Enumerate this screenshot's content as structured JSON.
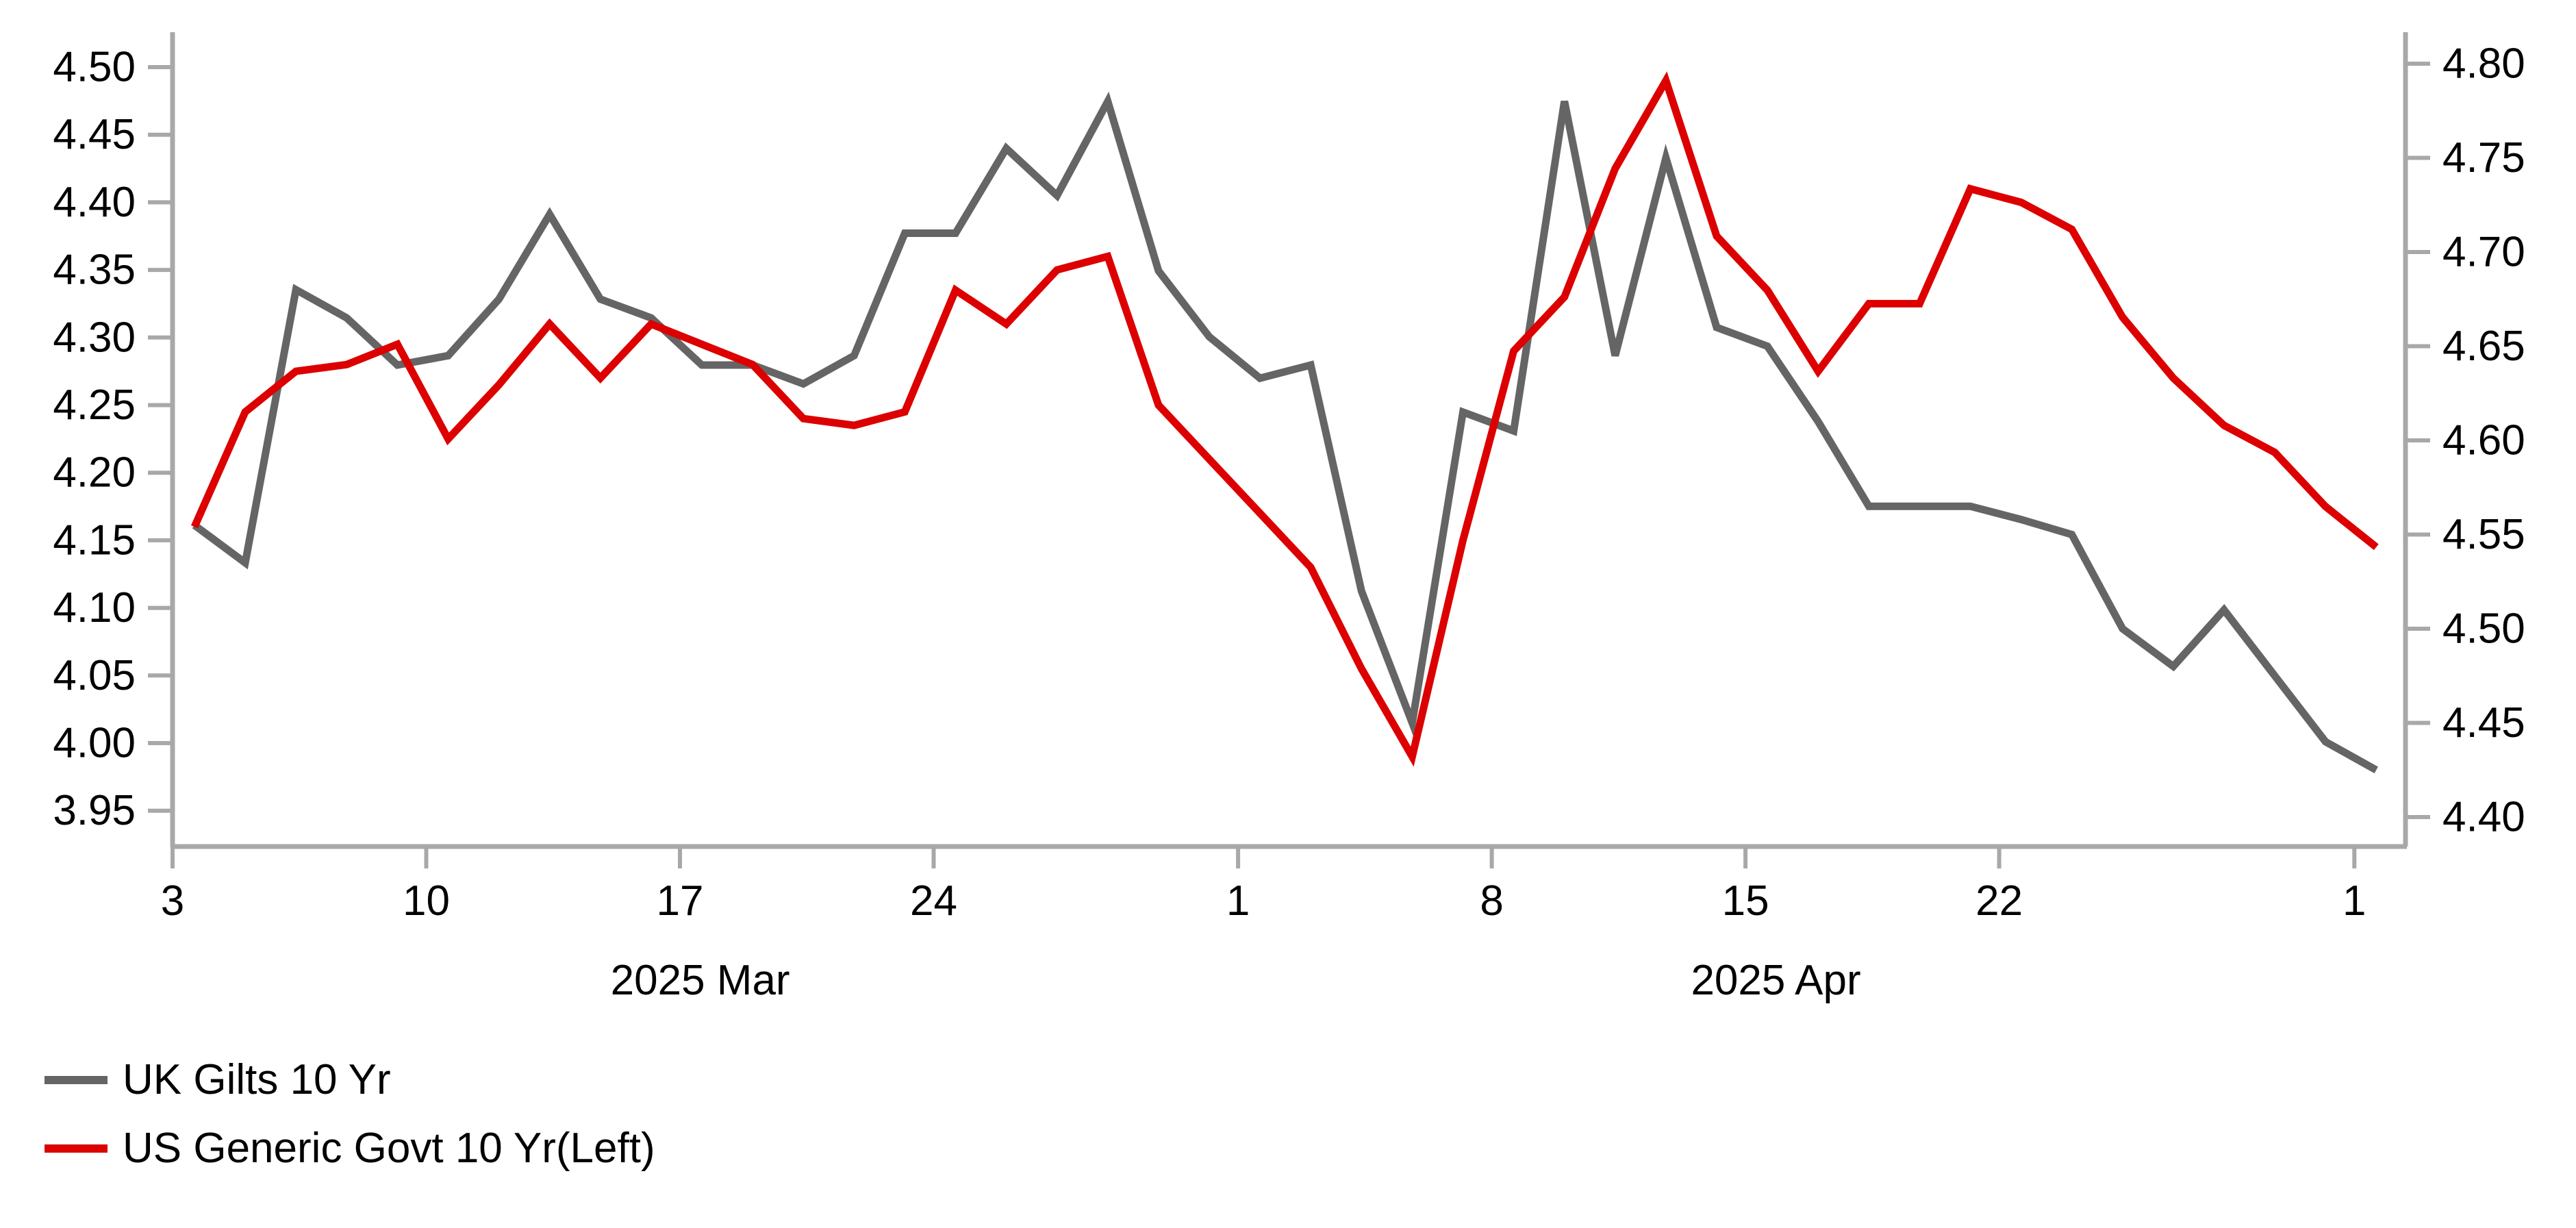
{
  "chart_data": {
    "type": "line",
    "title": "",
    "x_dates": [
      "Mar 3",
      "Mar 4",
      "Mar 5",
      "Mar 6",
      "Mar 7",
      "Mar 10",
      "Mar 11",
      "Mar 12",
      "Mar 13",
      "Mar 14",
      "Mar 17",
      "Mar 18",
      "Mar 19",
      "Mar 20",
      "Mar 21",
      "Mar 24",
      "Mar 25",
      "Mar 26",
      "Mar 27",
      "Mar 28",
      "Mar 31",
      "Apr 1",
      "Apr 2",
      "Apr 3",
      "Apr 4",
      "Apr 7",
      "Apr 8",
      "Apr 9",
      "Apr 10",
      "Apr 11",
      "Apr 14",
      "Apr 15",
      "Apr 16",
      "Apr 17",
      "Apr 18",
      "Apr 21",
      "Apr 22",
      "Apr 23",
      "Apr 24",
      "Apr 25",
      "Apr 28",
      "Apr 29",
      "Apr 30",
      "May 1"
    ],
    "series": [
      {
        "name": "UK Gilts 10 Yr",
        "axis": "right",
        "color": "#656565",
        "values": [
          4.555,
          4.535,
          4.68,
          4.665,
          4.64,
          4.645,
          4.675,
          4.72,
          4.675,
          4.665,
          4.64,
          4.64,
          4.63,
          4.645,
          4.71,
          4.71,
          4.755,
          4.73,
          4.78,
          4.69,
          4.655,
          4.633,
          4.64,
          4.52,
          4.45,
          4.615,
          4.605,
          4.78,
          4.645,
          4.75,
          4.66,
          4.65,
          4.61,
          4.565,
          4.565,
          4.565,
          4.558,
          4.55,
          4.5,
          4.48,
          4.51,
          4.475,
          4.44,
          4.425
        ]
      },
      {
        "name": "US Generic Govt 10 Yr(Left)",
        "axis": "left",
        "color": "#dc0000",
        "values": [
          4.16,
          4.245,
          4.275,
          4.28,
          4.295,
          4.225,
          4.265,
          4.31,
          4.27,
          4.31,
          4.295,
          4.28,
          4.24,
          4.235,
          4.245,
          4.335,
          4.31,
          4.35,
          4.36,
          4.25,
          4.21,
          4.17,
          4.13,
          4.055,
          3.99,
          4.15,
          4.29,
          4.33,
          4.425,
          4.49,
          4.375,
          4.335,
          4.275,
          4.325,
          4.325,
          4.41,
          4.4,
          4.38,
          4.315,
          4.27,
          4.235,
          4.215,
          4.175,
          4.145
        ]
      }
    ],
    "left_axis": {
      "min": 3.95,
      "max": 4.5,
      "tick_step": 0.05,
      "tick_labels": [
        "4.50",
        "4.45",
        "4.40",
        "4.35",
        "4.30",
        "4.25",
        "4.20",
        "4.15",
        "4.10",
        "4.05",
        "4.00",
        "3.95"
      ]
    },
    "right_axis": {
      "min": 4.4,
      "max": 4.8,
      "tick_step": 0.05,
      "tick_labels": [
        "4.80",
        "4.75",
        "4.70",
        "4.65",
        "4.60",
        "4.55",
        "4.50",
        "4.45",
        "4.40"
      ]
    },
    "x_axis": {
      "tick_labels": [
        "3",
        "10",
        "17",
        "24",
        "1",
        "8",
        "15",
        "22",
        "1"
      ],
      "tick_day_indices": [
        0,
        5,
        10,
        15,
        21,
        26,
        31,
        36,
        43
      ],
      "month_labels": [
        {
          "text": "2025 Mar",
          "day_index": 10.4
        },
        {
          "text": "2025 Apr",
          "day_index": 31.6
        }
      ]
    },
    "ylim_left": [
      3.95,
      4.5
    ],
    "ylim_right": [
      4.4,
      4.8
    ],
    "grid": false,
    "legend_position": "bottom-left",
    "legend": [
      {
        "label": "UK Gilts 10 Yr",
        "color": "#656565"
      },
      {
        "label": "US Generic Govt 10 Yr(Left)",
        "color": "#dc0000"
      }
    ],
    "axis_color": "#a8a8a8",
    "text_color": "#000000"
  }
}
